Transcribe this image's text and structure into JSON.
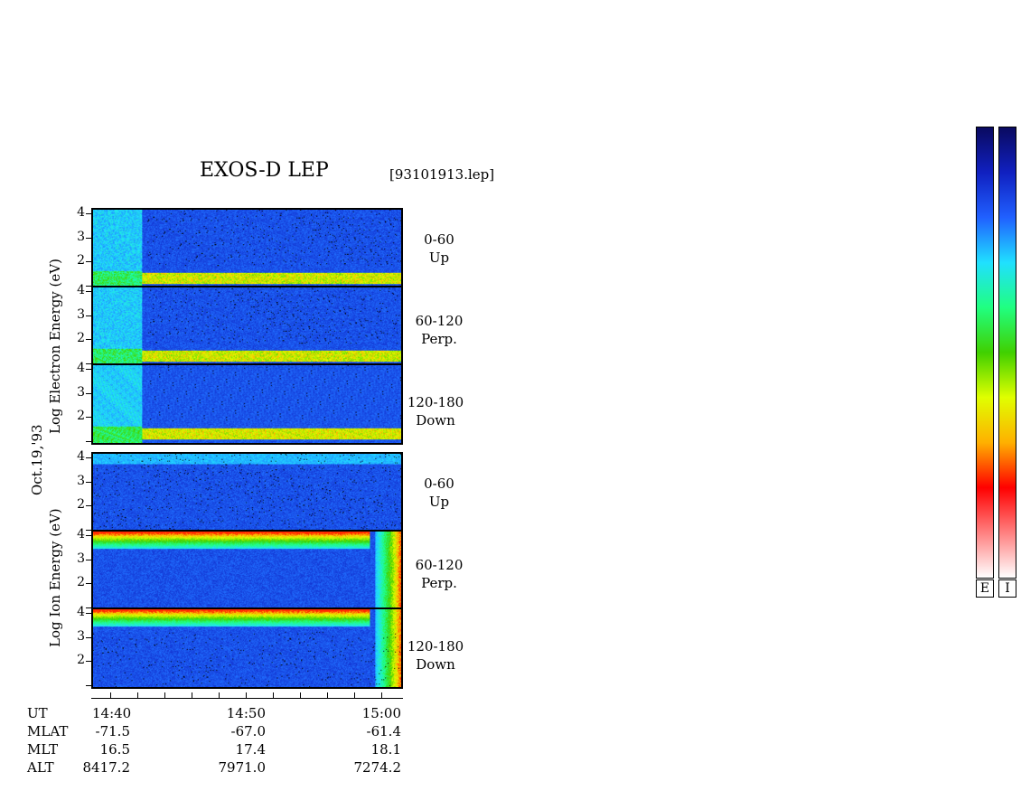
{
  "title": "EXOS-D LEP",
  "file": "[93101913.lep]",
  "date": "Oct.19,'93",
  "electron_axis_label": "Log   Electron   Energy (eV)",
  "ion_axis_label": "Log   Ion   Energy (eV)",
  "y_ticks": [
    "4",
    "3",
    "2"
  ],
  "panels": [
    {
      "species": "electron",
      "angle": "0-60",
      "direction": "Up"
    },
    {
      "species": "electron",
      "angle": "60-120",
      "direction": "Perp."
    },
    {
      "species": "electron",
      "angle": "120-180",
      "direction": "Down"
    },
    {
      "species": "ion",
      "angle": "0-60",
      "direction": "Up"
    },
    {
      "species": "ion",
      "angle": "60-120",
      "direction": "Perp."
    },
    {
      "species": "ion",
      "angle": "120-180",
      "direction": "Down"
    }
  ],
  "time_table": {
    "labels": [
      "UT",
      "MLAT",
      "MLT",
      "ALT"
    ],
    "columns": [
      {
        "UT": "14:40",
        "MLAT": "-71.5",
        "MLT": "16.5",
        "ALT": "8417.2"
      },
      {
        "UT": "14:50",
        "MLAT": "-67.0",
        "MLT": "17.4",
        "ALT": "7971.0"
      },
      {
        "UT": "15:00",
        "MLAT": "-61.4",
        "MLT": "18.1",
        "ALT": "7274.2"
      }
    ]
  },
  "colorbars": [
    {
      "label": "E"
    },
    {
      "label": "I"
    }
  ],
  "colors": {
    "colormap": [
      "#0a0a60",
      "#1020c0",
      "#2060ff",
      "#20e0ff",
      "#20ff80",
      "#40d000",
      "#e0ff00",
      "#ffb000",
      "#ff0000",
      "#ff8080",
      "#ffffff"
    ]
  },
  "chart_data": {
    "type": "heatmap",
    "title": "EXOS-D LEP",
    "x": [
      "14:40",
      "14:50",
      "15:00"
    ],
    "ylabel": "Log Energy (eV)",
    "yticks": [
      2,
      3,
      4
    ],
    "ylim": [
      1,
      4.1
    ],
    "series": [
      {
        "name": "Electron 0-60 Up"
      },
      {
        "name": "Electron 60-120 Perp."
      },
      {
        "name": "Electron 120-180 Down"
      },
      {
        "name": "Ion 0-60 Up"
      },
      {
        "name": "Ion 60-120 Perp."
      },
      {
        "name": "Ion 120-180 Down"
      }
    ]
  }
}
